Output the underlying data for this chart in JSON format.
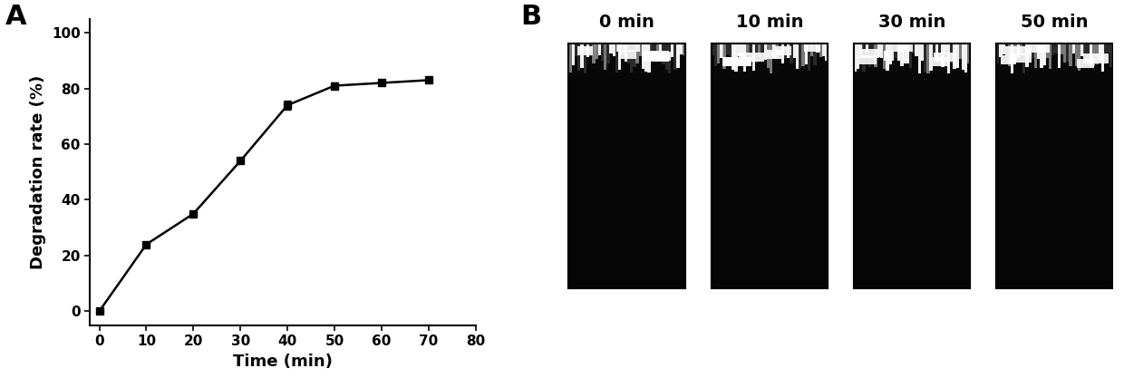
{
  "x": [
    0,
    10,
    20,
    30,
    40,
    50,
    60,
    70
  ],
  "y": [
    0,
    24,
    35,
    54,
    74,
    81,
    82,
    83
  ],
  "yerr": [
    0,
    0,
    0,
    0,
    1.5,
    1.0,
    0.5,
    0.5
  ],
  "xlabel": "Time (min)",
  "ylabel": "Degradation rate (%)",
  "xlim": [
    -2,
    80
  ],
  "ylim": [
    -5,
    105
  ],
  "xticks": [
    0,
    10,
    20,
    30,
    40,
    50,
    60,
    70,
    80
  ],
  "yticks": [
    0,
    20,
    40,
    60,
    80,
    100
  ],
  "label_A": "A",
  "label_B": "B",
  "panel_B_labels": [
    "0 min",
    "10 min",
    "30 min",
    "50 min"
  ],
  "bg_color": "#ffffff",
  "line_color": "#000000",
  "marker_color": "#000000",
  "axis_fontsize": 13,
  "tick_fontsize": 11,
  "label_fontsize": 22,
  "panel_label_fontsize": 14
}
